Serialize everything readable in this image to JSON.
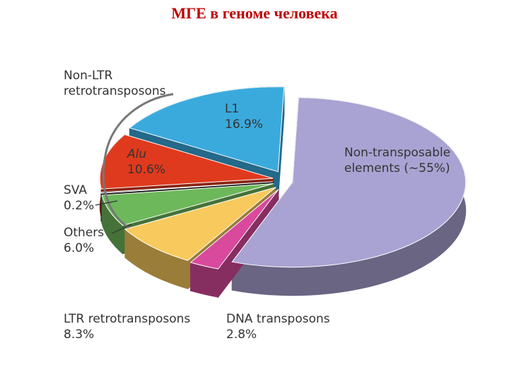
{
  "chart_data": {
    "type": "pie",
    "title": "МГЕ в геноме человека",
    "group_label": "Non-LTR retrotransposons",
    "categories": [
      "Non-transposable elements",
      "DNA transposons",
      "LTR retrotransposons",
      "Others",
      "SVA",
      "Alu",
      "L1"
    ],
    "values": [
      55,
      2.8,
      8.3,
      6.0,
      0.2,
      10.6,
      16.9
    ],
    "value_labels": [
      "(~55%)",
      "2.8%",
      "8.3%",
      "6.0%",
      "0.2%",
      "10.6%",
      "16.9%"
    ],
    "colors": [
      "#a9a3d3",
      "#d94a9c",
      "#f8c95c",
      "#6db85b",
      "#151515",
      "#e03a1e",
      "#3aaadd"
    ]
  }
}
